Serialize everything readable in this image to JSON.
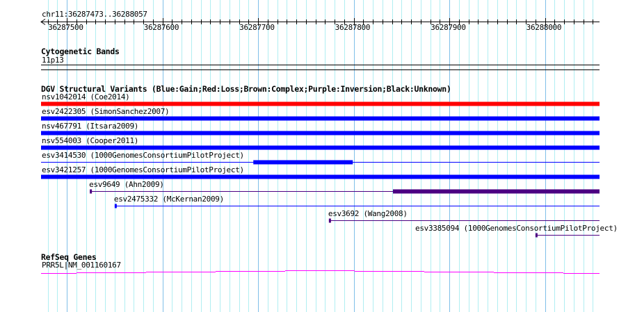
{
  "ruler": {
    "location": "chr11:36287473..36288057",
    "start": 36287473,
    "end": 36288057,
    "ticks": [
      "36287500",
      "36287600",
      "36287700",
      "36287800",
      "36287900",
      "36288000"
    ]
  },
  "cytobands": {
    "title": "Cytogenetic Bands",
    "band": "11p13"
  },
  "dgv": {
    "title": "DGV Structural Variants (Blue:Gain;Red:Loss;Brown:Complex;Purple:Inversion;Black:Unknown)",
    "colors": {
      "gain": "#0000ff",
      "loss": "#ff0000",
      "inversion": "#4b0082"
    },
    "variants": [
      {
        "label": "nsv1042014 (Coe2014)",
        "type": "loss",
        "start": 36287473,
        "end": 36288057
      },
      {
        "label": "esv2422305 (SimonSanchez2007)",
        "type": "gain",
        "start": 36287473,
        "end": 36288057
      },
      {
        "label": "nsv467791 (Itsara2009)",
        "type": "gain",
        "start": 36287473,
        "end": 36288057
      },
      {
        "label": "nsv554003 (Cooper2011)",
        "type": "gain",
        "start": 36287473,
        "end": 36288057
      },
      {
        "label": "esv3414530 (1000GenomesConsortiumPilotProject)",
        "type": "gain",
        "start": 36287473,
        "end": 36288057,
        "thick": [
          36287695,
          36287799
        ]
      },
      {
        "label": "esv3421257 (1000GenomesConsortiumPilotProject)",
        "type": "gain",
        "start": 36287473,
        "end": 36288057
      },
      {
        "label": "esv9649 (Ahn2009)",
        "type": "inversion",
        "start": 36287524,
        "end": 36288057,
        "thick": [
          36287841,
          36288057
        ]
      },
      {
        "label": "esv2475332 (McKernan2009)",
        "type": "gain",
        "start": 36287550,
        "end": 36288057
      },
      {
        "label": "esv3692 (Wang2008)",
        "type": "inversion",
        "start": 36287774,
        "end": 36288057
      },
      {
        "label": "esv3385094 (1000GenomesConsortiumPilotProject)",
        "type": "inversion",
        "start": 36287990,
        "end": 36288057
      }
    ]
  },
  "refseq": {
    "title": "RefSeq Genes",
    "gene": "PRR5L|NM_001160167",
    "color": "#ff00ff"
  }
}
